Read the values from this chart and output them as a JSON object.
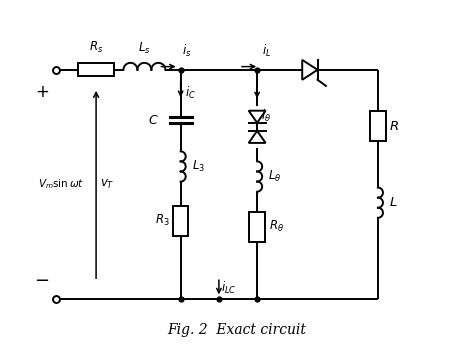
{
  "background_color": "#ffffff",
  "line_color": "#000000",
  "title": "Fig. 2  Exact circuit",
  "title_fontsize": 10,
  "fig_width": 4.74,
  "fig_height": 3.45,
  "dpi": 100
}
